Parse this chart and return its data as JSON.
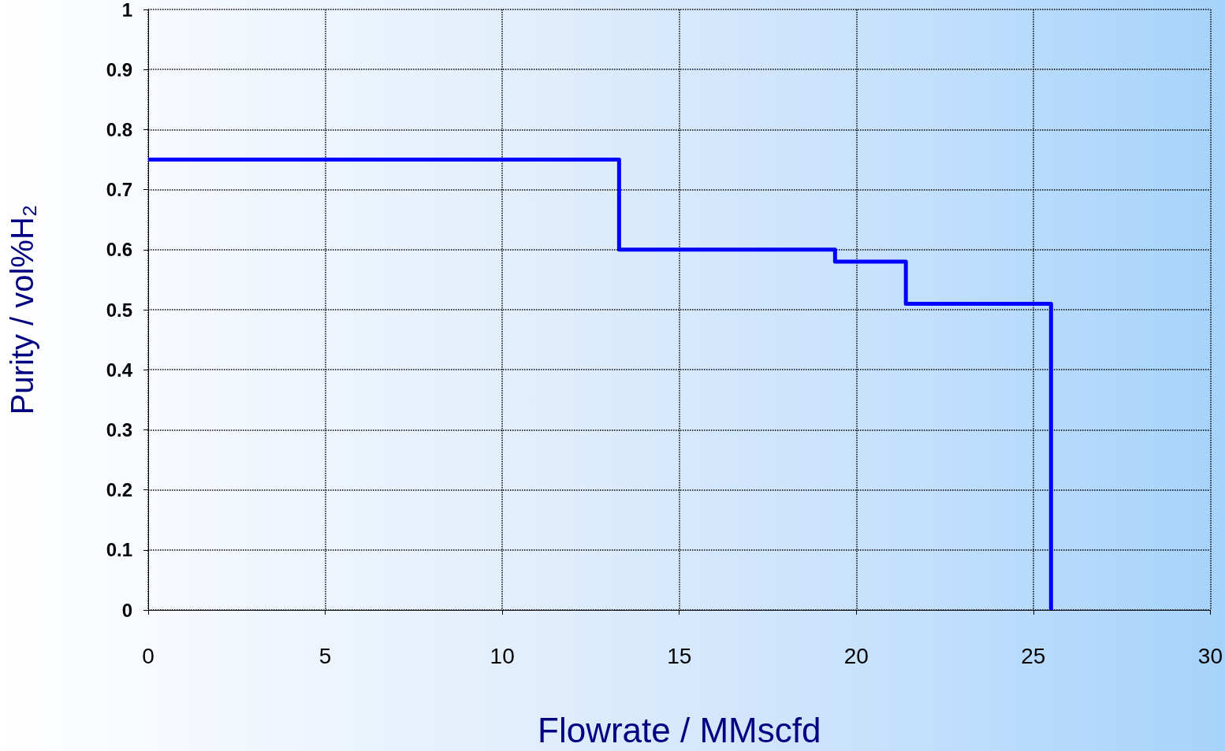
{
  "chart_data": {
    "type": "step",
    "xlabel": "Flowrate / MMscfd",
    "ylabel": "Purity / vol%H₂",
    "x": [
      0,
      13.3,
      19.4,
      21.4,
      25.5
    ],
    "series": [
      {
        "color": "#0000ff",
        "values": [
          0.75,
          0.6,
          0.58,
          0.51,
          0
        ]
      }
    ],
    "xlim": [
      0,
      30
    ],
    "xticks": [
      0,
      5,
      10,
      15,
      20,
      25,
      30
    ],
    "ylim": [
      0,
      1
    ],
    "yticks": [
      0,
      0.1,
      0.2,
      0.3,
      0.4,
      0.5,
      0.6,
      0.7,
      0.8,
      0.9,
      1
    ],
    "grid": true,
    "marker": "none",
    "line_style": "solid"
  }
}
